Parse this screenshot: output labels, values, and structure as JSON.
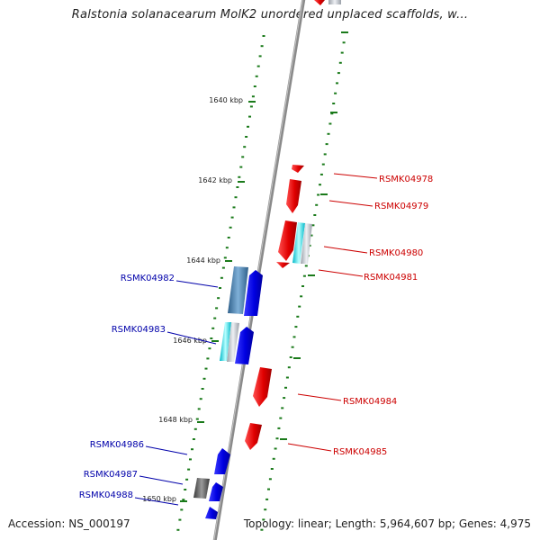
{
  "title": "Ralstonia solanacearum MolK2 unordered unplaced scaffolds, w...",
  "footer": {
    "accession": "Accession: NS_000197",
    "topology": "Topology: linear; Length: 5,964,607 bp; Genes: 4,975"
  },
  "colors": {
    "backbone": "#808080",
    "tick": "#1a7a1a",
    "forward_strand_label": "#cc0000",
    "reverse_strand_label": "#0000aa"
  },
  "kbp_labels": [
    {
      "text": "1640 kbp"
    },
    {
      "text": "1642 kbp"
    },
    {
      "text": "1644 kbp"
    },
    {
      "text": "1646 kbp"
    },
    {
      "text": "1648 kbp"
    },
    {
      "text": "1650 kbp"
    }
  ],
  "genes_red": [
    {
      "label": "RSMK04978"
    },
    {
      "label": "RSMK04979"
    },
    {
      "label": "RSMK04980"
    },
    {
      "label": "RSMK04981"
    },
    {
      "label": "RSMK04984"
    },
    {
      "label": "RSMK04985"
    }
  ],
  "genes_blue": [
    {
      "label": "RSMK04982"
    },
    {
      "label": "RSMK04983"
    },
    {
      "label": "RSMK04986"
    },
    {
      "label": "RSMK04987"
    },
    {
      "label": "RSMK04988"
    }
  ]
}
